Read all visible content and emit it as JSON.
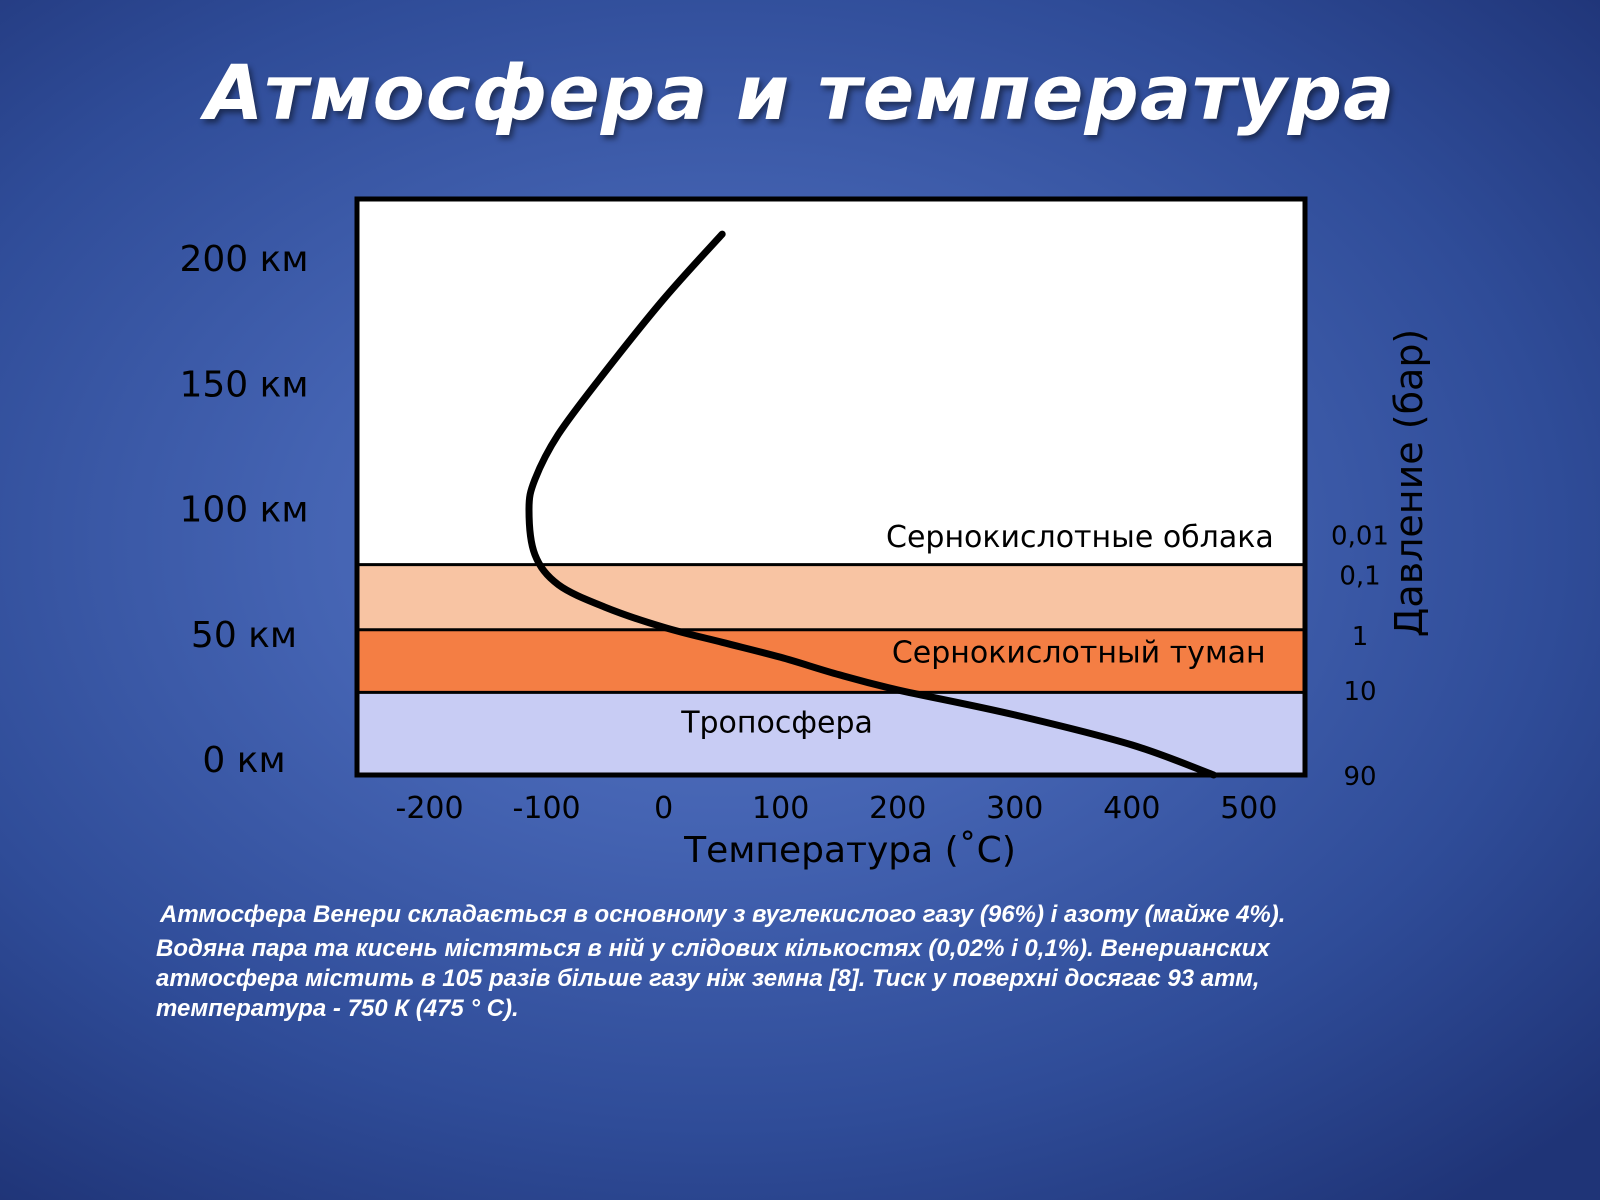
{
  "slide": {
    "title": "Атмосфера и температура",
    "caption_lines": [
      "Атмосфера Венери складається в основному з вуглекислого газу (96%) і азоту (майже 4%).",
      "Водяна пара та кисень містяться в ній у слідових кількостях (0,02% і 0,1%). Венерианских",
      "атмосфера містить в 105 разів більше газу ніж земна [8]. Тиск у поверхні досягає 93 атм,",
      "температура - 750 К (475 ° С)."
    ]
  },
  "colors": {
    "plot_background": "#ffffff",
    "clouds_band": "#f8c4a3",
    "haze_band": "#f47e44",
    "troposphere_band": "#c8ccf4",
    "curve": "#000000",
    "axis_text": "#000000"
  },
  "chart_data": {
    "type": "line",
    "title": "",
    "xlabel": "Температура (˚C)",
    "ylabel_right": "Давление (бар)",
    "x_ticks": [
      -200,
      -100,
      0,
      100,
      200,
      300,
      400,
      500
    ],
    "x_tick_labels": [
      "-200",
      "-100",
      "0",
      "100",
      "200",
      "300",
      "400",
      "500"
    ],
    "y_ticks": [
      0,
      50,
      100,
      150,
      200
    ],
    "y_tick_labels": [
      "0 км",
      "50 км",
      "100 км",
      "150 км",
      "200 км"
    ],
    "xlim": [
      -262,
      548
    ],
    "ylim": [
      -6,
      224
    ],
    "pressure_ticks": [
      {
        "altitude": 90,
        "label": "0,01"
      },
      {
        "altitude": 74,
        "label": "0,1"
      },
      {
        "altitude": 50,
        "label": "1"
      },
      {
        "altitude": 28,
        "label": "10"
      },
      {
        "altitude": -6,
        "label": "90"
      }
    ],
    "bands": [
      {
        "name": "Сернокислотные облака",
        "from": 52,
        "to": 78,
        "color": "#f8c4a3"
      },
      {
        "name": "Сернокислотный туман",
        "from": 27,
        "to": 52,
        "color": "#f47e44"
      },
      {
        "name": "Тропосфера",
        "from": -6,
        "to": 27,
        "color": "#c8ccf4"
      }
    ],
    "band_labels": [
      {
        "text": "Сернокислотные облака",
        "x": 190,
        "y": 85
      },
      {
        "text": "Сернокислотный туман",
        "x": 195,
        "y": 39
      },
      {
        "text": "Тропосфера",
        "x": 15,
        "y": 11
      }
    ],
    "series": [
      {
        "x": [
          470,
          400,
          300,
          200,
          150,
          100,
          50,
          0,
          -50,
          -90,
          -110,
          -115,
          -110,
          -90,
          -50,
          0,
          50
        ],
        "y": [
          -6,
          6,
          18,
          28,
          34,
          41,
          47,
          53,
          61,
          70,
          82,
          100,
          112,
          130,
          155,
          184,
          210
        ]
      }
    ],
    "grid": false,
    "legend": "none"
  }
}
